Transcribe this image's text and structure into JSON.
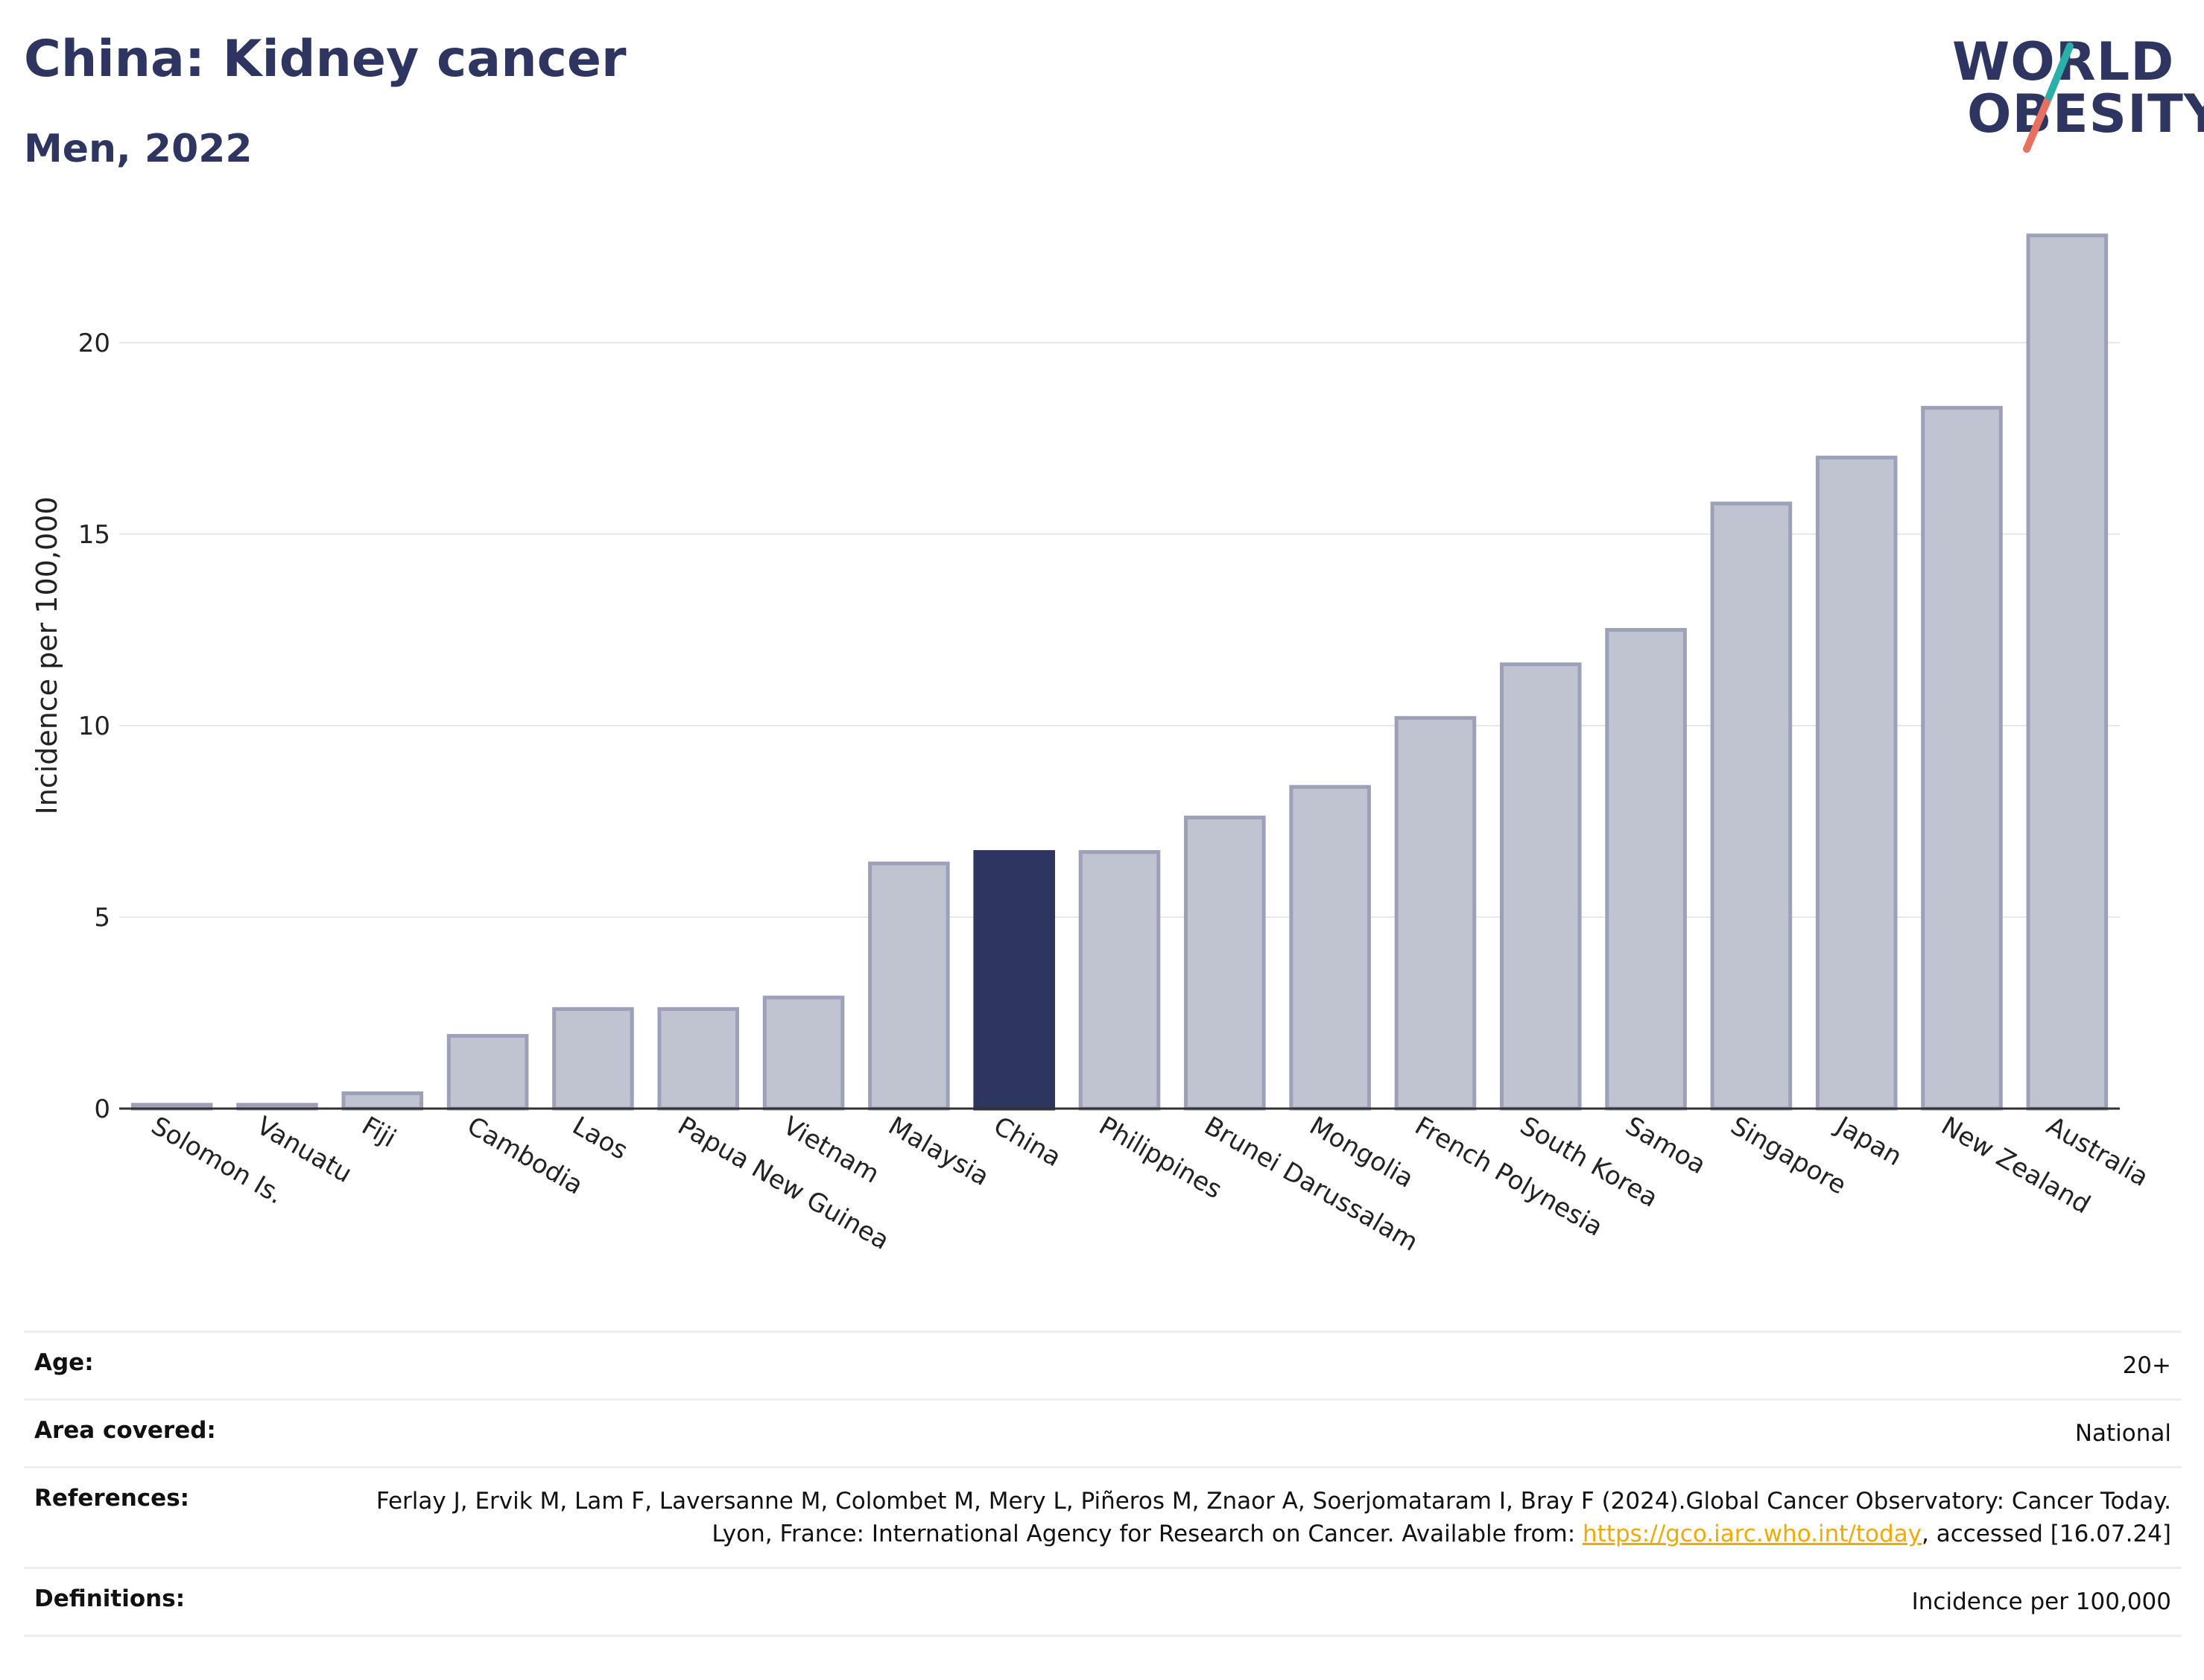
{
  "header": {
    "title": "China: Kidney cancer",
    "subtitle": "Men, 2022"
  },
  "logo": {
    "line1": "WORLD",
    "line2": "OBESITY",
    "icon": "world-obesity-logo"
  },
  "chart_data": {
    "type": "bar",
    "ylabel": "Incidence per 100,000",
    "ylim": [
      0,
      23.5
    ],
    "yticks": [
      0,
      5,
      10,
      15,
      20
    ],
    "grid": true,
    "categories": [
      "Solomon Is.",
      "Vanuatu",
      "Fiji",
      "Cambodia",
      "Laos",
      "Papua New Guinea",
      "Vietnam",
      "Malaysia",
      "China",
      "Philippines",
      "Brunei Darussalam",
      "Mongolia",
      "French Polynesia",
      "South Korea",
      "Samoa",
      "Singapore",
      "Japan",
      "New Zealand",
      "Australia"
    ],
    "values": [
      0.1,
      0.1,
      0.4,
      1.9,
      2.6,
      2.6,
      2.9,
      6.4,
      6.7,
      6.7,
      7.6,
      8.4,
      10.2,
      11.6,
      12.5,
      15.8,
      17.0,
      18.3,
      22.8
    ],
    "highlight": "China",
    "colors": {
      "bar": "#c0c3d0",
      "bar_border": "#9ca1b9",
      "highlight": "#2d3560"
    }
  },
  "info": {
    "age": {
      "label": "Age:",
      "value": "20+"
    },
    "area": {
      "label": "Area covered:",
      "value": "National"
    },
    "references": {
      "label": "References:",
      "text1": "Ferlay J, Ervik M, Lam F, Laversanne M, Colombet M, Mery L, Piñeros M, Znaor A, Soerjomataram I, Bray F (2024).Global Cancer Observatory: Cancer Today. Lyon, France: International Agency for Research on Cancer. Available from: ",
      "link": "https://gco.iarc.who.int/today",
      "text2": ", accessed [16.07.24]"
    },
    "definitions": {
      "label": "Definitions:",
      "value": "Incidence per 100,000"
    }
  }
}
